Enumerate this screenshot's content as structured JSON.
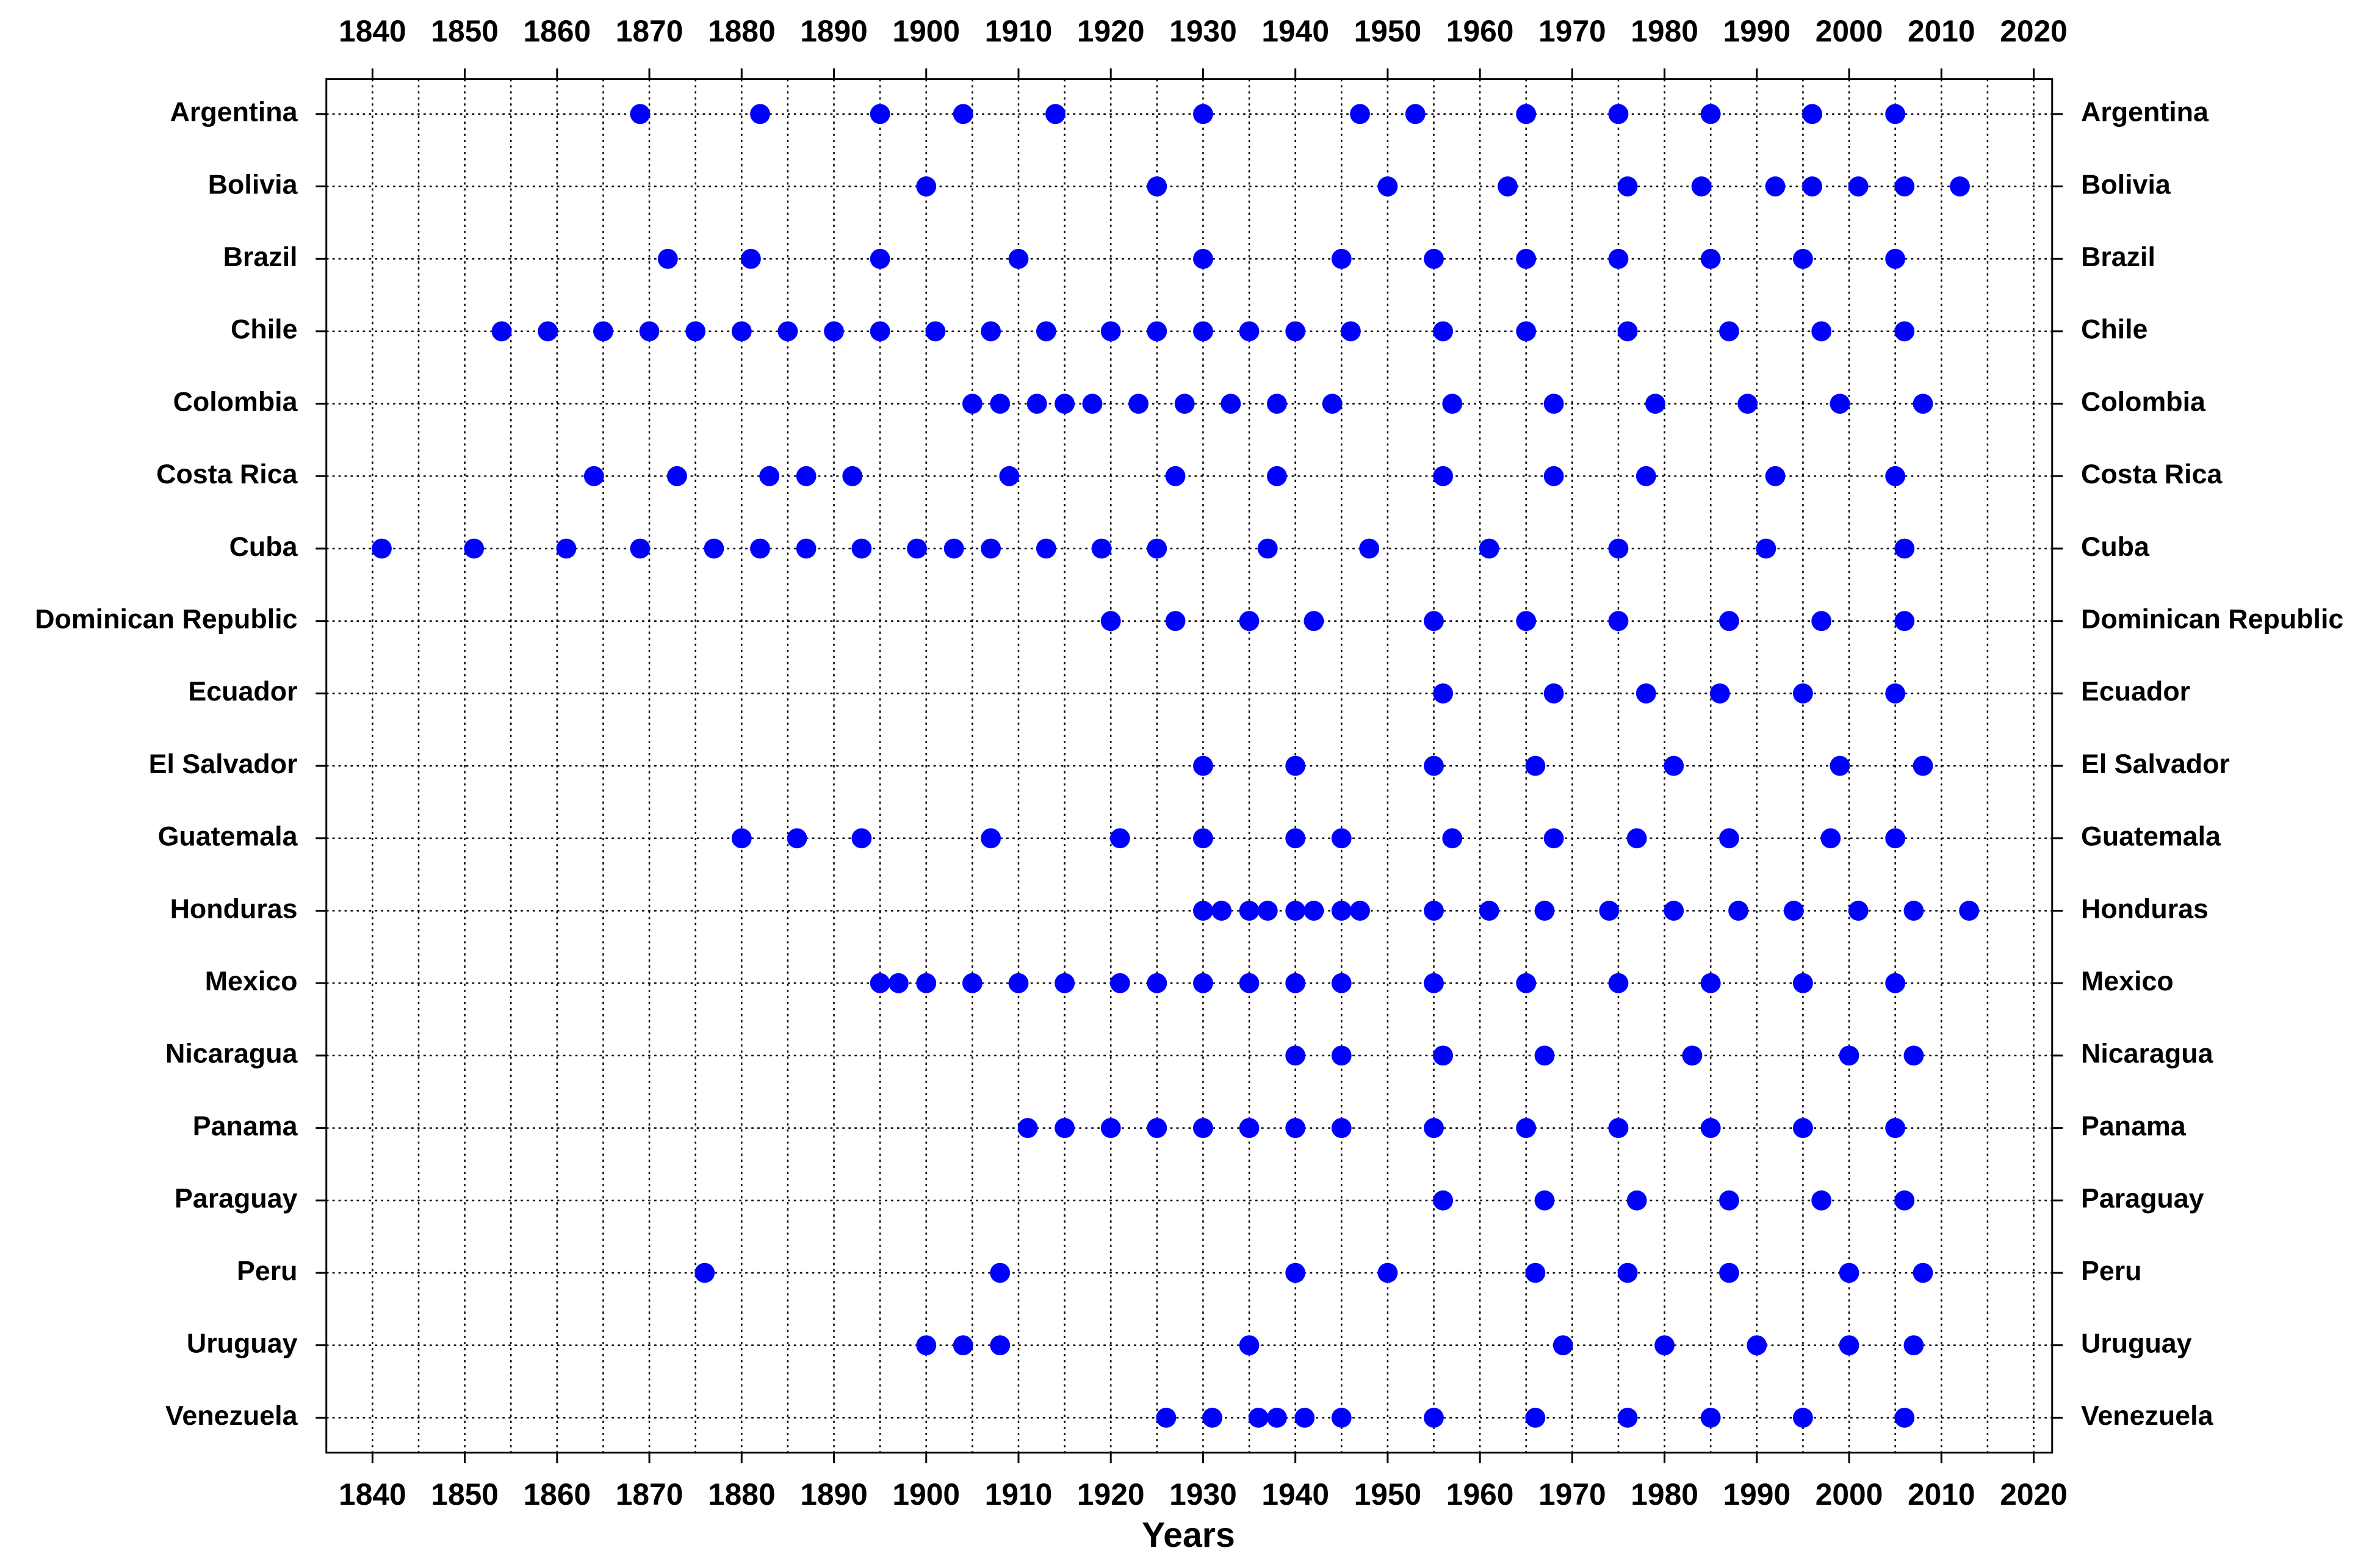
{
  "chart_data": {
    "type": "dot",
    "x_label": "Years",
    "color": "#0000ff",
    "xlim": [
      1835,
      2022
    ],
    "xticks": [
      1840,
      1850,
      1860,
      1870,
      1880,
      1890,
      1900,
      1910,
      1920,
      1930,
      1940,
      1950,
      1960,
      1970,
      1980,
      1990,
      2000,
      2010,
      2020
    ],
    "x_gridlines": [
      1840,
      1845,
      1850,
      1855,
      1860,
      1865,
      1870,
      1875,
      1880,
      1885,
      1890,
      1895,
      1900,
      1905,
      1910,
      1915,
      1920,
      1925,
      1930,
      1935,
      1940,
      1945,
      1950,
      1955,
      1960,
      1965,
      1970,
      1975,
      1980,
      1985,
      1990,
      1995,
      2000,
      2005,
      2010,
      2015,
      2020
    ],
    "grid": true,
    "rows": [
      {
        "name": "Argentina",
        "x": [
          1869,
          1882,
          1895,
          1904,
          1914,
          1930,
          1947,
          1953,
          1965,
          1975,
          1985,
          1996,
          2005
        ]
      },
      {
        "name": "Bolivia",
        "x": [
          1900,
          1925,
          1950,
          1963,
          1976,
          1984,
          1992,
          1996,
          2001,
          2006,
          2012
        ]
      },
      {
        "name": "Brazil",
        "x": [
          1872,
          1881,
          1895,
          1910,
          1930,
          1945,
          1955,
          1965,
          1975,
          1985,
          1995,
          2005
        ]
      },
      {
        "name": "Chile",
        "x": [
          1854,
          1859,
          1865,
          1870,
          1875,
          1880,
          1885,
          1890,
          1895,
          1901,
          1907,
          1913,
          1920,
          1925,
          1930,
          1935,
          1940,
          1946,
          1956,
          1965,
          1976,
          1987,
          1997,
          2006
        ]
      },
      {
        "name": "Colombia",
        "x": [
          1905,
          1908,
          1912,
          1915,
          1918,
          1923,
          1928,
          1933,
          1938,
          1944,
          1957,
          1968,
          1979,
          1989,
          1999,
          2008
        ]
      },
      {
        "name": "Costa Rica",
        "x": [
          1864,
          1873,
          1883,
          1887,
          1892,
          1909,
          1927,
          1938,
          1956,
          1968,
          1978,
          1992,
          2005
        ]
      },
      {
        "name": "Cuba",
        "x": [
          1841,
          1851,
          1861,
          1869,
          1877,
          1882,
          1887,
          1893,
          1899,
          1903,
          1907,
          1913,
          1919,
          1925,
          1937,
          1948,
          1961,
          1975,
          1991,
          2006
        ]
      },
      {
        "name": "Dominican Republic",
        "x": [
          1920,
          1927,
          1935,
          1942,
          1955,
          1965,
          1975,
          1987,
          1997,
          2006
        ]
      },
      {
        "name": "Ecuador",
        "x": [
          1956,
          1968,
          1978,
          1986,
          1995,
          2005
        ]
      },
      {
        "name": "El Salvador",
        "x": [
          1930,
          1940,
          1955,
          1966,
          1981,
          1999,
          2008
        ]
      },
      {
        "name": "Guatemala",
        "x": [
          1880,
          1886,
          1893,
          1907,
          1921,
          1930,
          1940,
          1945,
          1957,
          1968,
          1977,
          1987,
          1998,
          2005
        ]
      },
      {
        "name": "Honduras",
        "x": [
          1930,
          1932,
          1935,
          1937,
          1940,
          1942,
          1945,
          1947,
          1955,
          1961,
          1967,
          1974,
          1981,
          1988,
          1994,
          2001,
          2007,
          2013
        ]
      },
      {
        "name": "Mexico",
        "x": [
          1895,
          1897,
          1900,
          1905,
          1910,
          1915,
          1921,
          1925,
          1930,
          1935,
          1940,
          1945,
          1955,
          1965,
          1975,
          1985,
          1995,
          2005
        ]
      },
      {
        "name": "Nicaragua",
        "x": [
          1940,
          1945,
          1956,
          1967,
          1983,
          2000,
          2007
        ]
      },
      {
        "name": "Panama",
        "x": [
          1911,
          1915,
          1920,
          1925,
          1930,
          1935,
          1940,
          1945,
          1955,
          1965,
          1975,
          1985,
          1995,
          2005
        ]
      },
      {
        "name": "Paraguay",
        "x": [
          1956,
          1967,
          1977,
          1987,
          1997,
          2006
        ]
      },
      {
        "name": "Peru",
        "x": [
          1876,
          1908,
          1940,
          1950,
          1966,
          1976,
          1987,
          2000,
          2008
        ]
      },
      {
        "name": "Uruguay",
        "x": [
          1900,
          1904,
          1908,
          1935,
          1969,
          1980,
          1990,
          2000,
          2007
        ]
      },
      {
        "name": "Venezuela",
        "x": [
          1926,
          1931,
          1936,
          1938,
          1941,
          1945,
          1955,
          1966,
          1976,
          1985,
          1995,
          2006
        ]
      }
    ]
  }
}
